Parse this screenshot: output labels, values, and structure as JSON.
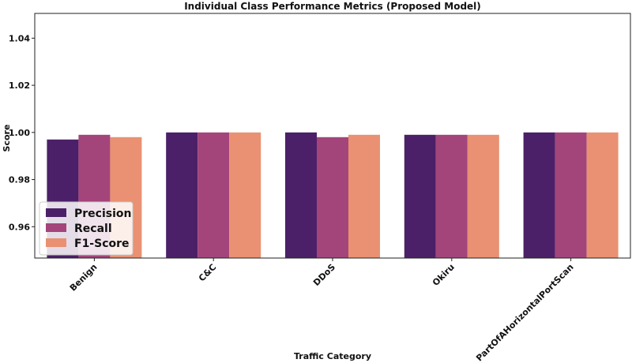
{
  "chart_data": {
    "type": "bar",
    "title": "Individual Class Performance Metrics (Proposed Model)",
    "xlabel": "Traffic Category",
    "ylabel": "Score",
    "categories": [
      "Benign",
      "C&C",
      "DDoS",
      "Okiru",
      "PartOfAHorizontalPortScan"
    ],
    "series": [
      {
        "name": "Precision",
        "color": "#4b2068",
        "values": [
          0.997,
          1.0,
          1.0,
          0.999,
          1.0
        ]
      },
      {
        "name": "Recall",
        "color": "#a3457a",
        "values": [
          0.999,
          1.0,
          0.998,
          0.999,
          1.0
        ]
      },
      {
        "name": "F1-Score",
        "color": "#e99172",
        "values": [
          0.998,
          1.0,
          0.999,
          0.999,
          1.0
        ]
      }
    ],
    "ylim": [
      0.9467,
      1.0505
    ],
    "yticks": [
      "0.96",
      "0.98",
      "1.00",
      "1.02",
      "1.04"
    ],
    "ytick_values": [
      0.96,
      0.98,
      1.0,
      1.02,
      1.04
    ],
    "grid": false,
    "legend_position": "lower-left"
  }
}
